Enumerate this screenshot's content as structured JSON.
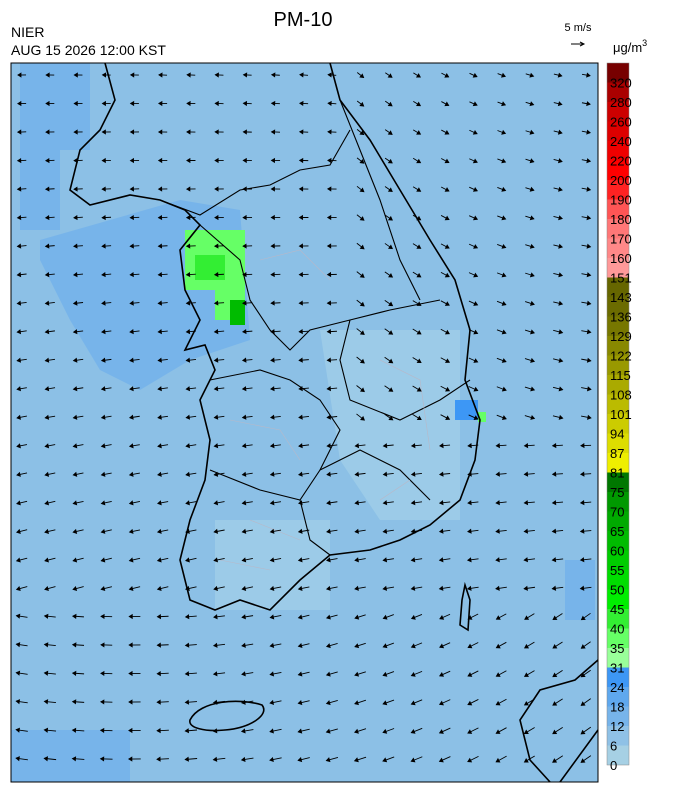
{
  "header": {
    "title": "PM-10",
    "agency": "NIER",
    "timestamp": "AUG 15 2026 12:00 KST"
  },
  "wind_legend": {
    "label": "5 m/s"
  },
  "colorbar": {
    "unit": "μg/m",
    "unit_exponent": "3",
    "labels": [
      0,
      6,
      12,
      18,
      24,
      31,
      35,
      40,
      45,
      50,
      55,
      60,
      65,
      70,
      75,
      81,
      87,
      94,
      101,
      108,
      115,
      122,
      129,
      136,
      143,
      151,
      160,
      170,
      180,
      190,
      200,
      220,
      240,
      260,
      280,
      320
    ],
    "colors": [
      "#a6d0e4",
      "#8fc1e6",
      "#77b4ea",
      "#5fa8ee",
      "#3d97f5",
      "#99ff99",
      "#66ff66",
      "#33ee33",
      "#00ee00",
      "#00dd00",
      "#00cc00",
      "#00bb00",
      "#00aa00",
      "#009900",
      "#007700",
      "#eeee00",
      "#dddd00",
      "#cccc00",
      "#bbbb00",
      "#aaaa00",
      "#999900",
      "#888800",
      "#777700",
      "#6b6b00",
      "#666600",
      "#ff9999",
      "#ff8888",
      "#ff7777",
      "#ff5555",
      "#ff2222",
      "#ff0000",
      "#ee0000",
      "#dd0000",
      "#cc0000",
      "#aa0000",
      "#770000"
    ]
  }
}
